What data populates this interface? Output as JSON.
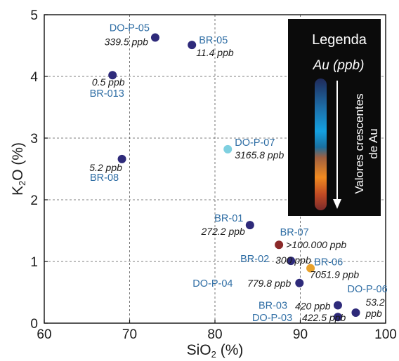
{
  "chart_data": {
    "type": "scatter",
    "xlabel": "SiO",
    "xlabel_sub": "2",
    "xlabel_unit": " (%)",
    "ylabel": "K",
    "ylabel_sub": "2",
    "ylabel_unit": "O (%)",
    "xlim": [
      60,
      100
    ],
    "ylim": [
      0,
      5
    ],
    "x_ticks": [
      60,
      70,
      80,
      90,
      100
    ],
    "y_ticks": [
      0,
      1,
      2,
      3,
      4,
      5
    ],
    "grid": "dashed",
    "colors": {
      "base": "#2e2a7a",
      "low_mid": "#7fd0e0",
      "high": "#e8a12a",
      "max": "#8b2a2a",
      "label": "#2e6da4"
    },
    "points": [
      {
        "name": "DO-P-05",
        "value": "339.5 ppb",
        "x": 73.0,
        "y": 4.63,
        "color": "#2e2a7a"
      },
      {
        "name": "BR-05",
        "value": "11.4 ppb",
        "x": 77.3,
        "y": 4.51,
        "color": "#2e2a7a"
      },
      {
        "name": "BR-013",
        "value": "0.5 ppb",
        "x": 68.0,
        "y": 4.02,
        "color": "#2e2a7a"
      },
      {
        "name": "DO-P-07",
        "value": "3165.8 ppb",
        "x": 81.5,
        "y": 2.82,
        "color": "#7fd0e0"
      },
      {
        "name": "BR-08",
        "value": "5.2 ppb",
        "x": 69.1,
        "y": 2.66,
        "color": "#2e2a7a"
      },
      {
        "name": "BR-01",
        "value": "272.2 ppb",
        "x": 84.1,
        "y": 1.59,
        "color": "#2e2a7a"
      },
      {
        "name": "BR-07",
        "value": ">100.000 ppb",
        "x": 87.5,
        "y": 1.27,
        "color": "#8b2a2a"
      },
      {
        "name": "BR-02",
        "value": "300 ppb",
        "x": 88.9,
        "y": 1.01,
        "color": "#2e2a7a"
      },
      {
        "name": "BR-06",
        "value": "7051.9 ppb",
        "x": 91.2,
        "y": 0.89,
        "color": "#e8a12a"
      },
      {
        "name": "DO-P-04",
        "value": "779.8 ppb",
        "x": 89.9,
        "y": 0.65,
        "color": "#2e2a7a"
      },
      {
        "name": "BR-03",
        "value": "420 ppb",
        "x": 94.4,
        "y": 0.29,
        "color": "#2e2a7a"
      },
      {
        "name": "DO-P-03",
        "value": "422.5 ppb",
        "x": 94.4,
        "y": 0.1,
        "color": "#2e2a7a"
      },
      {
        "name": "DO-P-06",
        "value": "53.2",
        "value2": "ppb",
        "x": 96.5,
        "y": 0.17,
        "color": "#2e2a7a"
      }
    ],
    "legend": {
      "title": "Legenda",
      "subtitle": "Au (ppb)",
      "caption_line1": "Valores crescentes",
      "caption_line2": "de Au",
      "placement": "top-right"
    }
  }
}
